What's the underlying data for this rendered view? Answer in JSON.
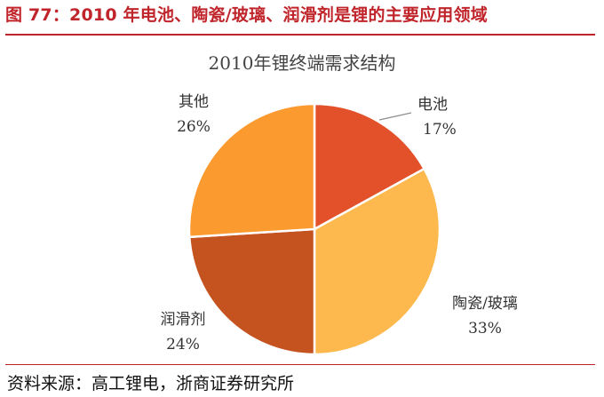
{
  "figure": {
    "title": "图 77：2010 年电池、陶瓷/玻璃、润滑剂是锂的主要应用领域",
    "source": "资料来源：高工锂电，浙商证券研究所"
  },
  "chart_data": {
    "type": "pie",
    "title": "2010年锂终端需求结构",
    "unit": "%",
    "slices": [
      {
        "label": "电池",
        "value": 17,
        "value_label": "17%",
        "color": "#e2512a"
      },
      {
        "label": "陶瓷/玻璃",
        "value": 33,
        "value_label": "33%",
        "color": "#fdb94e"
      },
      {
        "label": "润滑剂",
        "value": 24,
        "value_label": "24%",
        "color": "#c5531f"
      },
      {
        "label": "其他",
        "value": 26,
        "value_label": "26%",
        "color": "#fb9a2e"
      }
    ],
    "start_angle_deg": 0,
    "direction": "clockwise",
    "legend": "none"
  }
}
